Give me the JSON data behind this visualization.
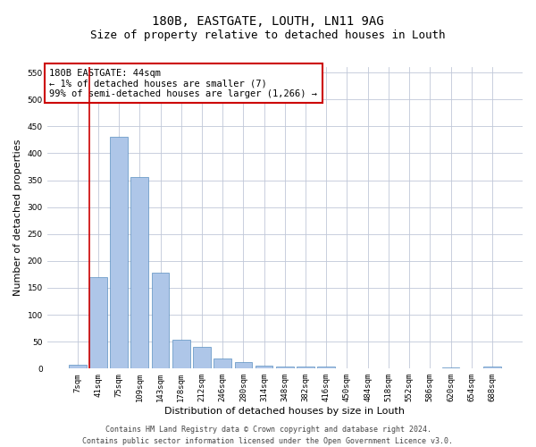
{
  "title": "180B, EASTGATE, LOUTH, LN11 9AG",
  "subtitle": "Size of property relative to detached houses in Louth",
  "xlabel": "Distribution of detached houses by size in Louth",
  "ylabel": "Number of detached properties",
  "categories": [
    "7sqm",
    "41sqm",
    "75sqm",
    "109sqm",
    "143sqm",
    "178sqm",
    "212sqm",
    "246sqm",
    "280sqm",
    "314sqm",
    "348sqm",
    "382sqm",
    "416sqm",
    "450sqm",
    "484sqm",
    "518sqm",
    "552sqm",
    "586sqm",
    "620sqm",
    "654sqm",
    "688sqm"
  ],
  "values": [
    8,
    170,
    430,
    355,
    178,
    54,
    40,
    19,
    12,
    6,
    4,
    4,
    4,
    1,
    1,
    1,
    0,
    0,
    3,
    0,
    4
  ],
  "bar_color": "#aec6e8",
  "bar_edge_color": "#5a8fc0",
  "vline_color": "#cc0000",
  "annotation_line1": "180B EASTGATE: 44sqm",
  "annotation_line2": "← 1% of detached houses are smaller (7)",
  "annotation_line3": "99% of semi-detached houses are larger (1,266) →",
  "annotation_box_color": "#ffffff",
  "annotation_box_edge": "#cc0000",
  "ylim": [
    0,
    560
  ],
  "yticks": [
    0,
    50,
    100,
    150,
    200,
    250,
    300,
    350,
    400,
    450,
    500,
    550
  ],
  "footer_line1": "Contains HM Land Registry data © Crown copyright and database right 2024.",
  "footer_line2": "Contains public sector information licensed under the Open Government Licence v3.0.",
  "bg_color": "#ffffff",
  "grid_color": "#c0c8d8",
  "title_fontsize": 10,
  "subtitle_fontsize": 9,
  "axis_label_fontsize": 8,
  "tick_fontsize": 6.5,
  "annotation_fontsize": 7.5,
  "footer_fontsize": 6
}
